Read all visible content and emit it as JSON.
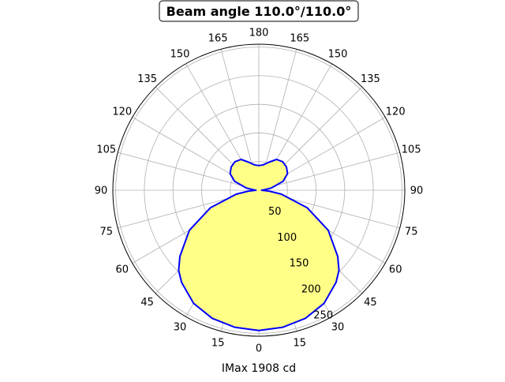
{
  "chart_data": {
    "type": "polar-line",
    "title": "Beam angle 110.0°/110.0°",
    "xlabel": "IMax 1908 cd",
    "angle_zero": "bottom",
    "angle_direction": "symmetric",
    "angle_ticks": [
      0,
      15,
      30,
      45,
      60,
      75,
      90,
      105,
      120,
      135,
      150,
      165,
      180
    ],
    "radial_ticks": [
      50,
      100,
      150,
      200,
      250
    ],
    "rlim": [
      0,
      255
    ],
    "grid": true,
    "fill_color": "#ffff88",
    "line_color": "#0000ff",
    "series": [
      {
        "angles": [
          0,
          10,
          20,
          30,
          40,
          45,
          50,
          60,
          70,
          80,
          85,
          90,
          95,
          100,
          110,
          120,
          130,
          140,
          150,
          160,
          170,
          180
        ],
        "values": [
          245,
          243,
          238,
          228,
          210,
          198,
          180,
          140,
          90,
          40,
          18,
          5,
          10,
          22,
          45,
          58,
          63,
          65,
          62,
          52,
          45,
          43
        ]
      }
    ]
  }
}
